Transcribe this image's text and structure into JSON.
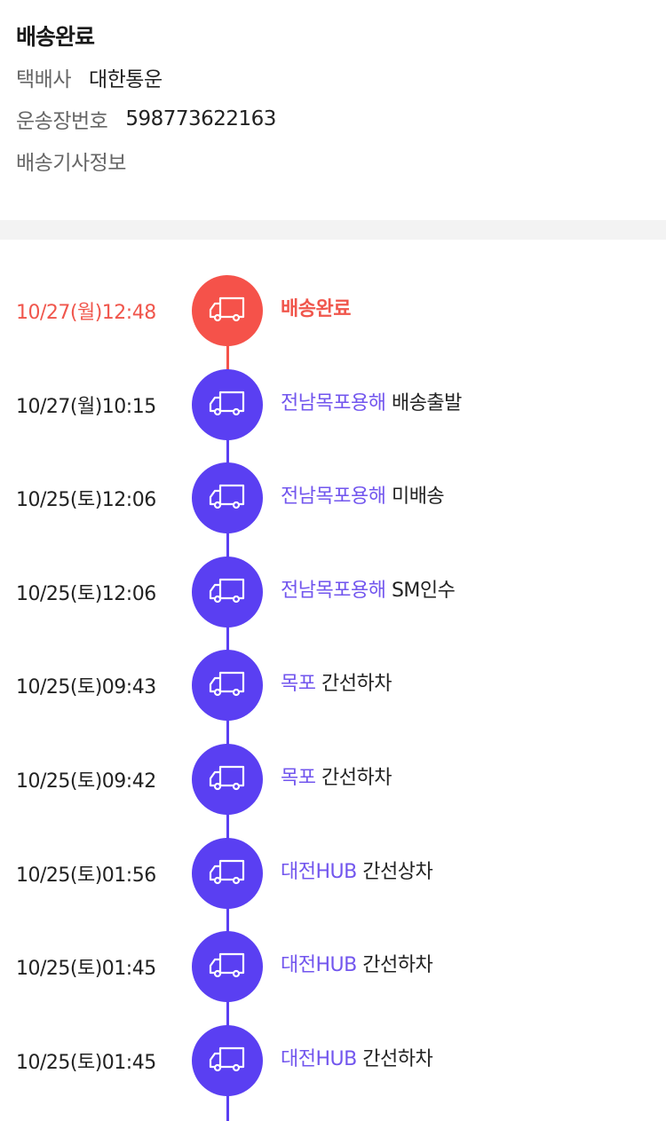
{
  "header": {
    "title": "배송완료",
    "courier_label": "택배사",
    "courier_value": "대한통운",
    "tracking_label": "운송장번호",
    "tracking_value": "598773622163",
    "driver_info_label": "배송기사정보"
  },
  "colors": {
    "done": "#f5524a",
    "progress": "#5a3ff2",
    "location_text": "#7256ee"
  },
  "icon": "truck-icon",
  "timeline": [
    {
      "time": "10/27(월)12:48",
      "location": "",
      "status": "배송완료",
      "done": true
    },
    {
      "time": "10/27(월)10:15",
      "location": "전남목포용해",
      "status": "배송출발"
    },
    {
      "time": "10/25(토)12:06",
      "location": "전남목포용해",
      "status": "미배송"
    },
    {
      "time": "10/25(토)12:06",
      "location": "전남목포용해",
      "status": "SM인수"
    },
    {
      "time": "10/25(토)09:43",
      "location": "목포",
      "status": "간선하차"
    },
    {
      "time": "10/25(토)09:42",
      "location": "목포",
      "status": "간선하차"
    },
    {
      "time": "10/25(토)01:56",
      "location": "대전HUB",
      "status": "간선상차"
    },
    {
      "time": "10/25(토)01:45",
      "location": "대전HUB",
      "status": "간선하차"
    },
    {
      "time": "10/25(토)01:45",
      "location": "대전HUB",
      "status": "간선하차"
    }
  ]
}
